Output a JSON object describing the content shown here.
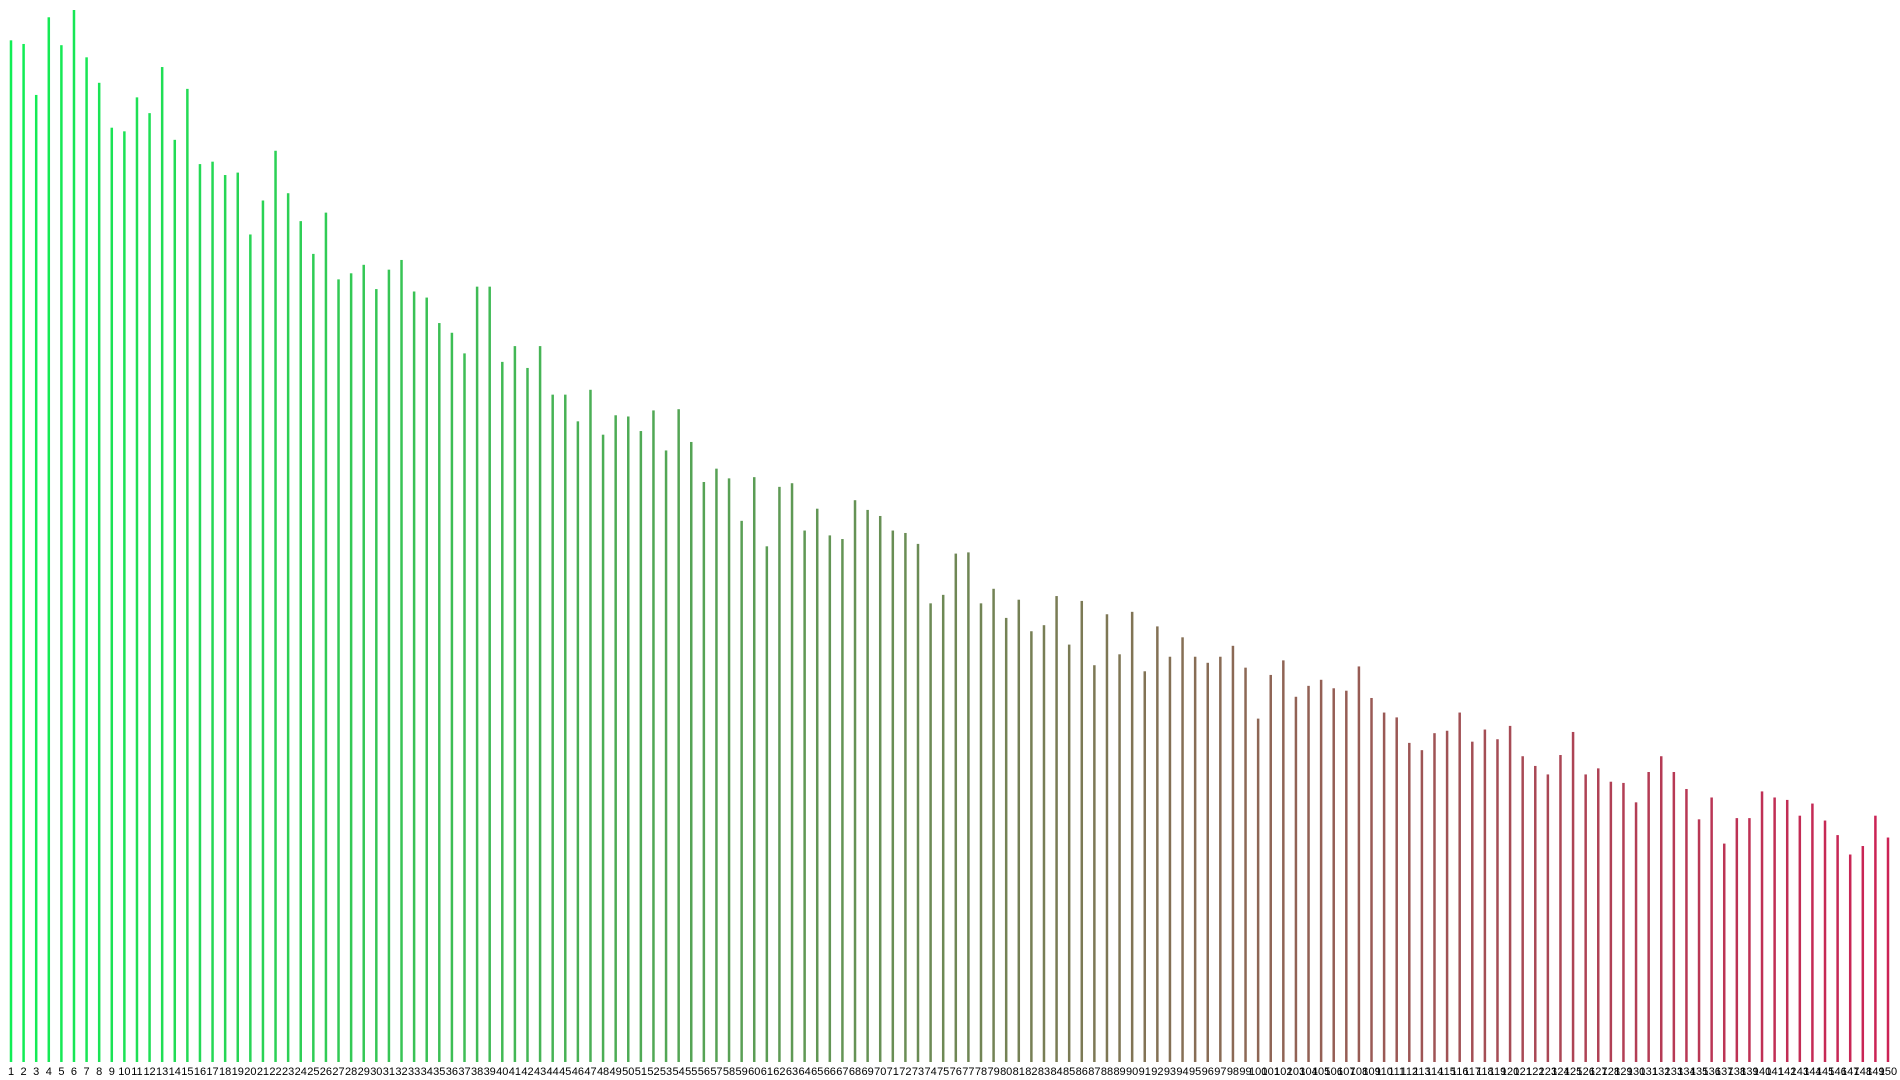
{
  "chart_data": {
    "type": "bar",
    "categories": [
      "1",
      "2",
      "3",
      "4",
      "5",
      "6",
      "7",
      "8",
      "9",
      "10",
      "11",
      "12",
      "13",
      "14",
      "15",
      "16",
      "17",
      "18",
      "19",
      "20",
      "21",
      "22",
      "23",
      "24",
      "25",
      "26",
      "27",
      "28",
      "29",
      "30",
      "31",
      "32",
      "33",
      "34",
      "35",
      "36",
      "37",
      "38",
      "39",
      "40",
      "41",
      "42",
      "43",
      "44",
      "45",
      "46",
      "47",
      "48",
      "49",
      "50",
      "51",
      "52",
      "53",
      "54",
      "55",
      "56",
      "57",
      "58",
      "59",
      "60",
      "61",
      "62",
      "63",
      "64",
      "65",
      "66",
      "67",
      "68",
      "69",
      "70",
      "71",
      "72",
      "73",
      "74",
      "75",
      "76",
      "77",
      "78",
      "79",
      "80",
      "81",
      "82",
      "83",
      "84",
      "85",
      "86",
      "87",
      "88",
      "89",
      "90",
      "91",
      "92",
      "93",
      "94",
      "95",
      "96",
      "97",
      "98",
      "99",
      "100",
      "101",
      "102",
      "103",
      "104",
      "105",
      "106",
      "107",
      "108",
      "109",
      "110",
      "111",
      "112",
      "113",
      "114",
      "115",
      "116",
      "117",
      "118",
      "119",
      "120",
      "121",
      "122",
      "123",
      "124",
      "125",
      "126",
      "127",
      "128",
      "129",
      "130",
      "131",
      "132",
      "133",
      "134",
      "135",
      "136",
      "137",
      "138",
      "139",
      "140",
      "141",
      "142",
      "143",
      "144",
      "145",
      "146",
      "147",
      "148",
      "149",
      "150"
    ],
    "values": [
      842,
      839,
      797,
      861,
      838,
      867,
      828,
      807,
      770,
      767,
      795,
      782,
      820,
      760,
      802,
      740,
      742,
      731,
      733,
      682,
      710,
      751,
      716,
      693,
      666,
      700,
      645,
      650,
      657,
      637,
      653,
      661,
      635,
      630,
      609,
      601,
      584,
      639,
      639,
      577,
      590,
      572,
      590,
      550,
      550,
      528,
      554,
      517,
      533,
      532,
      520,
      537,
      504,
      538,
      511,
      478,
      489,
      481,
      446,
      482,
      425,
      474,
      477,
      438,
      456,
      434,
      431,
      463,
      455,
      450,
      438,
      436,
      427,
      378,
      385,
      419,
      420,
      378,
      390,
      366,
      381,
      355,
      360,
      384,
      344,
      380,
      327,
      369,
      336,
      371,
      322,
      359,
      334,
      350,
      334,
      329,
      334,
      343,
      325,
      283,
      319,
      331,
      301,
      310,
      315,
      308,
      306,
      326,
      300,
      288,
      284,
      263,
      257,
      271,
      273,
      288,
      264,
      274,
      266,
      277,
      252,
      244,
      237,
      253,
      272,
      237,
      242,
      231,
      230,
      214,
      239,
      252,
      239,
      225,
      200,
      218,
      180,
      201,
      201,
      223,
      218,
      216,
      203,
      213,
      199,
      187,
      171,
      178,
      203,
      185
    ],
    "color_start": "#11ee55",
    "color_end": "#cc2255"
  }
}
